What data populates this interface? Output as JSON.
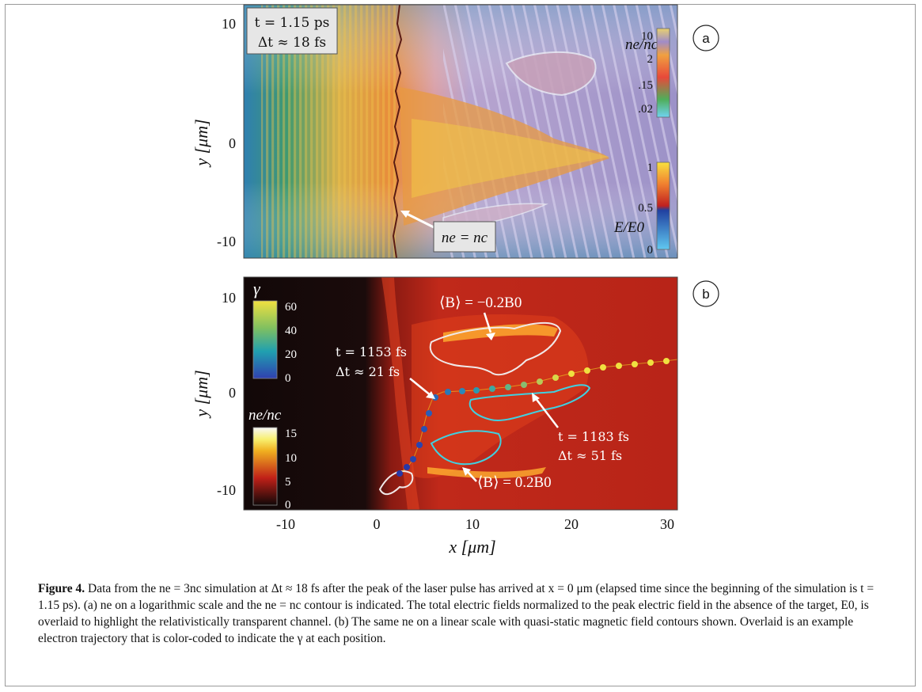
{
  "panel_a": {
    "badge": "a",
    "time_line": "t = 1.15 ps",
    "dt_line": "Δt ≈ 18 fs",
    "y_label": "y [μm]",
    "y_ticks": [
      "10",
      "0",
      "-10"
    ],
    "cb_density_label": "ne/nc",
    "cb_density_ticks": [
      "10",
      "2",
      ".15",
      ".02"
    ],
    "cb_field_label": "E/E0",
    "cb_field_ticks": [
      "1",
      "0.5",
      "0"
    ],
    "contour_label": "ne = nc"
  },
  "panel_b": {
    "badge": "b",
    "y_label": "y [μm]",
    "y_ticks": [
      "10",
      "0",
      "-10"
    ],
    "x_label": "x [μm]",
    "x_ticks": [
      "-10",
      "0",
      "10",
      "20",
      "30"
    ],
    "cb_gamma_label": "γ",
    "cb_gamma_ticks": [
      "60",
      "40",
      "20",
      "0"
    ],
    "cb_density_label": "ne/nc",
    "cb_density_ticks": [
      "15",
      "10",
      "5",
      "0"
    ],
    "b_neg_label": "⟨B⟩ = −0.2B0",
    "b_pos_label": "⟨B⟩ = 0.2B0",
    "annot1_t": "t = 1153 fs",
    "annot1_dt": "Δt ≈ 21 fs",
    "annot2_t": "t = 1183 fs",
    "annot2_dt": "Δt ≈ 51 fs"
  },
  "caption": {
    "fig_label": "Figure 4.",
    "text": "Data from the ne = 3nc simulation at Δt ≈ 18 fs after the peak of the laser pulse has arrived at x = 0 μm (elapsed time since the beginning of the simulation is t = 1.15 ps). (a) ne on a logarithmic scale and the ne = nc contour is indicated. The total electric fields normalized to the peak electric field in the absence of the target, E0, is overlaid to highlight the relativistically transparent channel. (b) The same ne on a linear scale with quasi-static magnetic field contours shown. Overlaid is an example electron trajectory that is color-coded to indicate the γ at each position."
  }
}
